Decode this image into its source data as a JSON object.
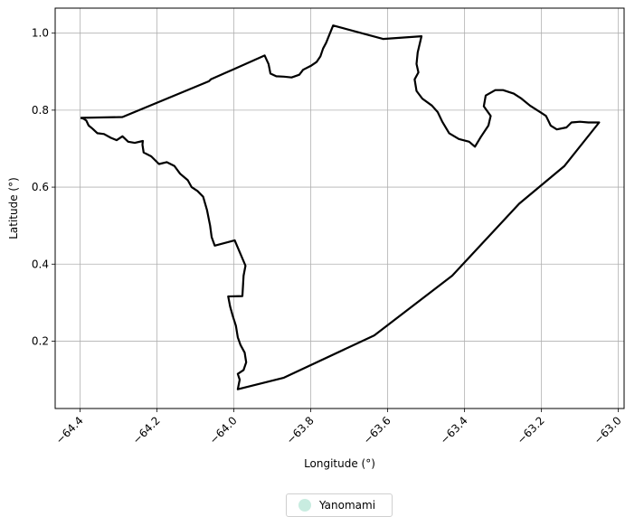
{
  "chart_data": {
    "type": "map",
    "xlabel": "Longitude (°)",
    "ylabel": "Latitude (°)",
    "xlim": [
      -64.465,
      -62.985
    ],
    "ylim": [
      0.025,
      1.065
    ],
    "xticks": [
      -64.4,
      -64.2,
      -64.0,
      -63.8,
      -63.6,
      -63.4,
      -63.2,
      -63.0
    ],
    "xtick_labels": [
      "−64.4",
      "−64.2",
      "−64.0",
      "−63.8",
      "−63.6",
      "−63.4",
      "−63.2",
      "−63.0"
    ],
    "yticks": [
      0.2,
      0.4,
      0.6,
      0.8,
      1.0
    ],
    "ytick_labels": [
      "0.2",
      "0.4",
      "0.6",
      "0.8",
      "1.0"
    ],
    "grid": true,
    "legend": {
      "placement": "bottom-center",
      "entries": [
        {
          "label": "Yanomami",
          "color": "#c8ece0"
        }
      ]
    },
    "boundary_color": "#000000",
    "boundary": [
      [
        -64.399,
        0.78
      ],
      [
        -64.29,
        0.782
      ],
      [
        -64.065,
        0.875
      ],
      [
        -64.06,
        0.88
      ],
      [
        -63.92,
        0.942
      ],
      [
        -63.91,
        0.92
      ],
      [
        -63.905,
        0.895
      ],
      [
        -63.89,
        0.888
      ],
      [
        -63.87,
        0.887
      ],
      [
        -63.85,
        0.885
      ],
      [
        -63.83,
        0.892
      ],
      [
        -63.82,
        0.905
      ],
      [
        -63.8,
        0.915
      ],
      [
        -63.785,
        0.925
      ],
      [
        -63.775,
        0.94
      ],
      [
        -63.768,
        0.96
      ],
      [
        -63.76,
        0.975
      ],
      [
        -63.752,
        0.995
      ],
      [
        -63.742,
        1.02
      ],
      [
        -63.612,
        0.985
      ],
      [
        -63.512,
        0.992
      ],
      [
        -63.522,
        0.95
      ],
      [
        -63.525,
        0.92
      ],
      [
        -63.52,
        0.898
      ],
      [
        -63.53,
        0.88
      ],
      [
        -63.525,
        0.85
      ],
      [
        -63.51,
        0.83
      ],
      [
        -63.485,
        0.812
      ],
      [
        -63.47,
        0.795
      ],
      [
        -63.458,
        0.77
      ],
      [
        -63.44,
        0.74
      ],
      [
        -63.415,
        0.725
      ],
      [
        -63.388,
        0.718
      ],
      [
        -63.373,
        0.705
      ],
      [
        -63.358,
        0.73
      ],
      [
        -63.338,
        0.76
      ],
      [
        -63.332,
        0.785
      ],
      [
        -63.35,
        0.81
      ],
      [
        -63.345,
        0.838
      ],
      [
        -63.32,
        0.852
      ],
      [
        -63.3,
        0.852
      ],
      [
        -63.272,
        0.843
      ],
      [
        -63.252,
        0.83
      ],
      [
        -63.23,
        0.812
      ],
      [
        -63.202,
        0.794
      ],
      [
        -63.188,
        0.785
      ],
      [
        -63.176,
        0.76
      ],
      [
        -63.16,
        0.75
      ],
      [
        -63.135,
        0.755
      ],
      [
        -63.122,
        0.768
      ],
      [
        -63.1,
        0.77
      ],
      [
        -63.078,
        0.768
      ],
      [
        -63.05,
        0.768
      ],
      [
        -63.14,
        0.655
      ],
      [
        -63.258,
        0.557
      ],
      [
        -63.432,
        0.37
      ],
      [
        -63.635,
        0.215
      ],
      [
        -63.87,
        0.105
      ],
      [
        -63.99,
        0.075
      ],
      [
        -63.985,
        0.1
      ],
      [
        -63.99,
        0.115
      ],
      [
        -63.975,
        0.125
      ],
      [
        -63.968,
        0.145
      ],
      [
        -63.972,
        0.17
      ],
      [
        -63.983,
        0.19
      ],
      [
        -63.99,
        0.21
      ],
      [
        -63.995,
        0.24
      ],
      [
        -64.003,
        0.265
      ],
      [
        -64.01,
        0.29
      ],
      [
        -64.015,
        0.316
      ],
      [
        -63.978,
        0.317
      ],
      [
        -63.975,
        0.37
      ],
      [
        -63.97,
        0.396
      ],
      [
        -63.998,
        0.462
      ],
      [
        -64.05,
        0.448
      ],
      [
        -64.058,
        0.47
      ],
      [
        -64.062,
        0.5
      ],
      [
        -64.07,
        0.54
      ],
      [
        -64.08,
        0.575
      ],
      [
        -64.095,
        0.59
      ],
      [
        -64.11,
        0.6
      ],
      [
        -64.12,
        0.618
      ],
      [
        -64.14,
        0.635
      ],
      [
        -64.155,
        0.655
      ],
      [
        -64.175,
        0.665
      ],
      [
        -64.195,
        0.66
      ],
      [
        -64.215,
        0.68
      ],
      [
        -64.235,
        0.69
      ],
      [
        -64.238,
        0.71
      ],
      [
        -64.237,
        0.72
      ],
      [
        -64.258,
        0.715
      ],
      [
        -64.275,
        0.718
      ],
      [
        -64.29,
        0.732
      ],
      [
        -64.305,
        0.722
      ],
      [
        -64.32,
        0.728
      ],
      [
        -64.338,
        0.738
      ],
      [
        -64.355,
        0.74
      ],
      [
        -64.368,
        0.752
      ],
      [
        -64.378,
        0.76
      ],
      [
        -64.384,
        0.773
      ],
      [
        -64.391,
        0.778
      ],
      [
        -64.399,
        0.78
      ]
    ]
  }
}
